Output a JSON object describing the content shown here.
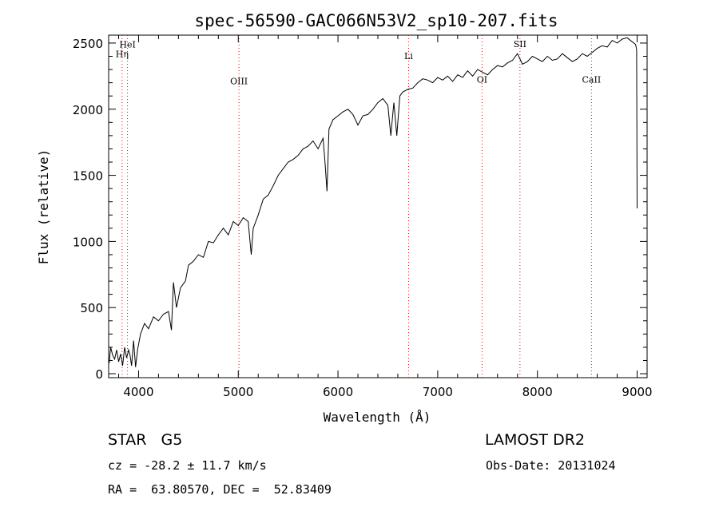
{
  "chart_data": {
    "type": "line",
    "title": "spec-56590-GAC066N53V2_sp10-207.fits",
    "xlabel": "Wavelength (Å)",
    "ylabel": "Flux (relative)",
    "xlim": [
      3700,
      9100
    ],
    "ylim": [
      -30,
      2560
    ],
    "x_ticks": [
      4000,
      5000,
      6000,
      7000,
      8000,
      9000
    ],
    "y_ticks": [
      0,
      500,
      1000,
      1500,
      2000,
      2500
    ],
    "grid": false,
    "line_color": "#000000",
    "marker_color": "#ff0000",
    "series": [
      {
        "x": [
          3705,
          3720,
          3740,
          3760,
          3780,
          3800,
          3820,
          3840,
          3860,
          3880,
          3900,
          3915,
          3930,
          3950,
          3970,
          3990,
          4020,
          4060,
          4100,
          4150,
          4200,
          4250,
          4300,
          4330,
          4350,
          4380,
          4420,
          4470,
          4500,
          4550,
          4600,
          4650,
          4700,
          4750,
          4800,
          4850,
          4900,
          4950,
          5000,
          5050,
          5100,
          5130,
          5150,
          5200,
          5250,
          5300,
          5350,
          5400,
          5450,
          5500,
          5550,
          5600,
          5650,
          5700,
          5750,
          5800,
          5850,
          5870,
          5890,
          5910,
          5950,
          6000,
          6050,
          6100,
          6150,
          6200,
          6250,
          6300,
          6350,
          6400,
          6450,
          6500,
          6530,
          6560,
          6590,
          6620,
          6650,
          6700,
          6750,
          6800,
          6850,
          6900,
          6950,
          7000,
          7050,
          7100,
          7150,
          7200,
          7250,
          7300,
          7350,
          7400,
          7450,
          7500,
          7550,
          7600,
          7650,
          7700,
          7750,
          7800,
          7850,
          7900,
          7950,
          8000,
          8050,
          8100,
          8150,
          8200,
          8250,
          8300,
          8350,
          8400,
          8450,
          8500,
          8550,
          8600,
          8650,
          8700,
          8750,
          8800,
          8850,
          8900,
          8950,
          8985,
          8995,
          9000
        ],
        "y": [
          80,
          200,
          140,
          110,
          180,
          90,
          150,
          60,
          200,
          120,
          180,
          140,
          60,
          250,
          50,
          180,
          300,
          380,
          340,
          430,
          400,
          450,
          470,
          330,
          690,
          500,
          650,
          700,
          820,
          850,
          900,
          880,
          1000,
          990,
          1050,
          1100,
          1050,
          1150,
          1120,
          1180,
          1150,
          900,
          1100,
          1200,
          1320,
          1350,
          1420,
          1500,
          1550,
          1600,
          1620,
          1650,
          1700,
          1720,
          1760,
          1700,
          1780,
          1600,
          1380,
          1850,
          1920,
          1950,
          1980,
          2000,
          1960,
          1880,
          1950,
          1960,
          2000,
          2050,
          2080,
          2030,
          1800,
          2050,
          1800,
          2100,
          2130,
          2150,
          2160,
          2200,
          2230,
          2220,
          2200,
          2240,
          2220,
          2250,
          2210,
          2260,
          2240,
          2290,
          2250,
          2300,
          2280,
          2260,
          2300,
          2330,
          2320,
          2350,
          2370,
          2420,
          2340,
          2360,
          2400,
          2380,
          2360,
          2400,
          2370,
          2380,
          2420,
          2390,
          2360,
          2380,
          2420,
          2400,
          2430,
          2460,
          2480,
          2470,
          2520,
          2500,
          2530,
          2540,
          2510,
          2490,
          2450,
          1250
        ]
      }
    ],
    "annotations": [
      {
        "label": "Hη",
        "x": 3835,
        "label_y": 2395
      },
      {
        "label": "HeI",
        "x": 3889,
        "label_y": 2465
      },
      {
        "label": "OIII",
        "x": 5007,
        "label_y": 2190
      },
      {
        "label": "Li",
        "x": 6708,
        "label_y": 2380
      },
      {
        "label": "OI",
        "x": 7445,
        "label_y": 2200
      },
      {
        "label": "SII",
        "x": 7825,
        "label_y": 2470
      },
      {
        "label": "CaII",
        "x": 8542,
        "label_y": 2200
      }
    ]
  },
  "info": {
    "class_line": "STAR   G5",
    "survey": "LAMOST DR2",
    "cz_line": "cz = -28.2 ± 11.7 km/s",
    "date_line": "Obs-Date: 20131024",
    "coord_line": "RA =  63.80570, DEC =  52.83409"
  }
}
